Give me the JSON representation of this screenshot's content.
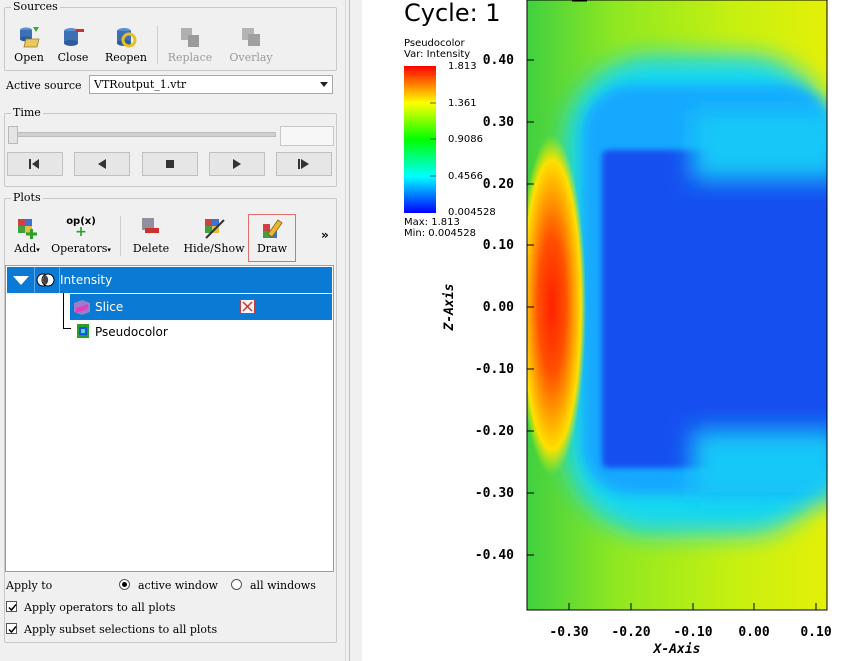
{
  "sources": {
    "title": "Sources",
    "toolbar": [
      {
        "label": "Open",
        "icon": "open-icon"
      },
      {
        "label": "Close",
        "icon": "close-icon"
      },
      {
        "label": "Reopen",
        "icon": "reopen-icon"
      },
      {
        "label": "Replace",
        "icon": "replace-icon"
      },
      {
        "label": "Overlay",
        "icon": "overlay-icon"
      }
    ],
    "active_source_label": "Active source",
    "active_source_value": "VTRoutput_1.vtr"
  },
  "time": {
    "title": "Time",
    "buttons": [
      "previous-frame-icon",
      "reverse-play-icon",
      "stop-icon",
      "play-icon",
      "next-frame-icon"
    ]
  },
  "plots": {
    "title": "Plots",
    "toolbar": [
      {
        "label": "Add",
        "icon": "add-plot-icon"
      },
      {
        "label": "Operators",
        "icon": "operators-icon",
        "glyph": "op(x)"
      },
      {
        "label": "Delete",
        "icon": "delete-icon"
      },
      {
        "label": "Hide/Show",
        "icon": "hide-show-icon"
      },
      {
        "label": "Draw",
        "icon": "draw-icon"
      }
    ],
    "more": "»",
    "tree": {
      "plot": "Intensity",
      "operator": "Slice",
      "sub": "Pseudocolor"
    },
    "apply_to_label": "Apply to",
    "active_window": "active window",
    "all_windows": "all windows",
    "apply_operators": "Apply operators to all plots",
    "apply_subset": "Apply subset selections to all plots"
  },
  "viz": {
    "cycle": "Cycle: 1",
    "legend": {
      "title": "Pseudocolor",
      "var": "Var: Intensity",
      "ticks": [
        "1.813",
        "1.361",
        "0.9086",
        "0.4566",
        "0.004528"
      ],
      "max": "Max: 1.813",
      "min": "Min: 0.004528"
    },
    "x_axis_title": "X-Axis",
    "y_axis_title": "Z-Axis",
    "x_ticks": [
      "-0.30",
      "-0.20",
      "-0.10",
      "0.00",
      "0.10"
    ],
    "y_ticks": [
      "0.40",
      "0.30",
      "0.20",
      "0.10",
      "0.00",
      "-0.10",
      "-0.20",
      "-0.30",
      "-0.40"
    ]
  },
  "colors": {
    "selection": "#0a7ad4",
    "draw_highlight": "#e07070"
  }
}
